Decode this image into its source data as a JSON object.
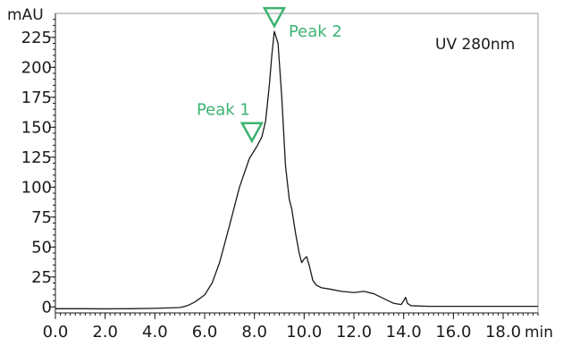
{
  "chart_data": {
    "type": "line",
    "xlabel": "min",
    "ylabel": "mAU",
    "annotation": "UV 280nm",
    "xlim": [
      0,
      19.4
    ],
    "ylim": [
      -5,
      245
    ],
    "x_ticks": [
      "0.0",
      "2.0",
      "4.0",
      "6.0",
      "8.0",
      "10.0",
      "12.0",
      "14.0",
      "16.0",
      "18.0"
    ],
    "x_tick_values": [
      0,
      2,
      4,
      6,
      8,
      10,
      12,
      14,
      16,
      18
    ],
    "y_ticks": [
      "0",
      "25",
      "50",
      "75",
      "100",
      "125",
      "150",
      "175",
      "200",
      "225"
    ],
    "y_tick_values": [
      0,
      25,
      50,
      75,
      100,
      125,
      150,
      175,
      200,
      225
    ],
    "grid": false,
    "line_color": "#1a1a1a",
    "marker_color": "#3cb371",
    "peaks": [
      {
        "label": "Peak 1",
        "x": 7.9,
        "y": 134
      },
      {
        "label": "Peak 2",
        "x": 8.8,
        "y": 230
      }
    ],
    "series": [
      {
        "x": [
          0,
          1,
          2,
          3,
          4,
          5,
          5.3,
          5.6,
          6.0,
          6.3,
          6.6,
          7.0,
          7.4,
          7.8,
          8.1,
          8.3,
          8.45,
          8.6,
          8.7,
          8.8,
          8.95,
          9.1,
          9.25,
          9.4,
          9.5,
          9.65,
          9.8,
          9.9,
          10.0,
          10.1,
          10.2,
          10.35,
          10.5,
          10.7,
          11.0,
          11.5,
          12.0,
          12.4,
          12.8,
          13.2,
          13.6,
          13.9,
          14.0,
          14.08,
          14.15,
          14.3,
          15.0,
          16.0,
          17.0,
          18.0,
          19.4
        ],
        "y": [
          -1.5,
          -1.5,
          -1.6,
          -1.5,
          -1.2,
          -0.5,
          1,
          4,
          10,
          20,
          37,
          68,
          100,
          124,
          134,
          142,
          155,
          185,
          210,
          230,
          220,
          175,
          118,
          90,
          82,
          62,
          45,
          37,
          40,
          42,
          35,
          22,
          18,
          16,
          15,
          13,
          12,
          13,
          11,
          7,
          3,
          2,
          5,
          8,
          3,
          1,
          0.5,
          0.5,
          0.5,
          0.5,
          0.5
        ]
      }
    ]
  }
}
